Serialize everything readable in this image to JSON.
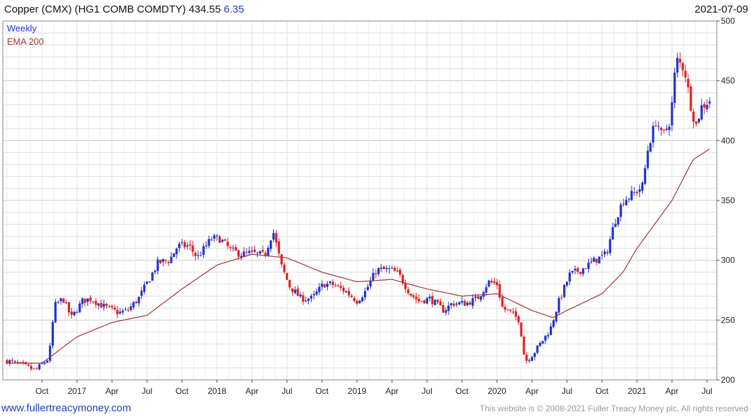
{
  "header": {
    "title": "Copper (CMX) (HG1 COMB COMDTY) 434.55",
    "change": "6.35",
    "date": "2021-07-09"
  },
  "footer": {
    "left": "www.fullertreacymoney.com",
    "right": "This website is © 2008-2021 Fuller Treacy Money plc. All rights reserved"
  },
  "colors": {
    "up": "#2233cc",
    "down": "#e02020",
    "ema": "#a83232",
    "grid": "#dedede"
  },
  "chart_data": {
    "type": "candlestick",
    "legend": [
      "Weekly",
      "EMA 200"
    ],
    "legend_position": "top-left",
    "grid": true,
    "ylim": [
      200,
      500
    ],
    "y_ticks": [
      200,
      250,
      300,
      350,
      400,
      450,
      500
    ],
    "x_ticks": [
      {
        "label": "Oct",
        "t": 2016.75
      },
      {
        "label": "2017",
        "t": 2017.0
      },
      {
        "label": "Apr",
        "t": 2017.25
      },
      {
        "label": "Jul",
        "t": 2017.5
      },
      {
        "label": "Oct",
        "t": 2017.75
      },
      {
        "label": "2018",
        "t": 2018.0
      },
      {
        "label": "Apr",
        "t": 2018.25
      },
      {
        "label": "Jul",
        "t": 2018.5
      },
      {
        "label": "Oct",
        "t": 2018.75
      },
      {
        "label": "2019",
        "t": 2019.0
      },
      {
        "label": "Apr",
        "t": 2019.25
      },
      {
        "label": "Jul",
        "t": 2019.5
      },
      {
        "label": "Oct",
        "t": 2019.75
      },
      {
        "label": "2020",
        "t": 2020.0
      },
      {
        "label": "Apr",
        "t": 2020.25
      },
      {
        "label": "Jul",
        "t": 2020.5
      },
      {
        "label": "Oct",
        "t": 2020.75
      },
      {
        "label": "2021",
        "t": 2021.0
      },
      {
        "label": "Apr",
        "t": 2021.25
      },
      {
        "label": "Jul",
        "t": 2021.5
      }
    ],
    "x_range": [
      2016.5,
      2021.52
    ],
    "price_path": [
      [
        2016.5,
        216
      ],
      [
        2016.62,
        212
      ],
      [
        2016.7,
        208
      ],
      [
        2016.8,
        218
      ],
      [
        2016.84,
        262
      ],
      [
        2016.9,
        268
      ],
      [
        2016.96,
        252
      ],
      [
        2017.04,
        266
      ],
      [
        2017.1,
        268
      ],
      [
        2017.18,
        262
      ],
      [
        2017.3,
        256
      ],
      [
        2017.36,
        258
      ],
      [
        2017.44,
        268
      ],
      [
        2017.52,
        285
      ],
      [
        2017.58,
        298
      ],
      [
        2017.66,
        300
      ],
      [
        2017.72,
        312
      ],
      [
        2017.8,
        312
      ],
      [
        2017.86,
        302
      ],
      [
        2017.96,
        318
      ],
      [
        2018.02,
        318
      ],
      [
        2018.1,
        308
      ],
      [
        2018.18,
        305
      ],
      [
        2018.24,
        306
      ],
      [
        2018.34,
        304
      ],
      [
        2018.4,
        325
      ],
      [
        2018.46,
        295
      ],
      [
        2018.52,
        278
      ],
      [
        2018.6,
        268
      ],
      [
        2018.68,
        268
      ],
      [
        2018.76,
        280
      ],
      [
        2018.82,
        280
      ],
      [
        2018.92,
        274
      ],
      [
        2019.0,
        266
      ],
      [
        2019.06,
        274
      ],
      [
        2019.14,
        292
      ],
      [
        2019.24,
        292
      ],
      [
        2019.3,
        288
      ],
      [
        2019.38,
        272
      ],
      [
        2019.44,
        266
      ],
      [
        2019.52,
        268
      ],
      [
        2019.62,
        258
      ],
      [
        2019.68,
        264
      ],
      [
        2019.78,
        264
      ],
      [
        2019.86,
        268
      ],
      [
        2019.94,
        282
      ],
      [
        2020.0,
        280
      ],
      [
        2020.04,
        260
      ],
      [
        2020.1,
        256
      ],
      [
        2020.16,
        250
      ],
      [
        2020.2,
        215
      ],
      [
        2020.26,
        222
      ],
      [
        2020.32,
        232
      ],
      [
        2020.38,
        242
      ],
      [
        2020.44,
        265
      ],
      [
        2020.52,
        288
      ],
      [
        2020.6,
        292
      ],
      [
        2020.7,
        300
      ],
      [
        2020.78,
        305
      ],
      [
        2020.84,
        332
      ],
      [
        2020.9,
        350
      ],
      [
        2020.98,
        356
      ],
      [
        2021.04,
        362
      ],
      [
        2021.08,
        395
      ],
      [
        2021.14,
        418
      ],
      [
        2021.18,
        402
      ],
      [
        2021.24,
        418
      ],
      [
        2021.28,
        468
      ],
      [
        2021.34,
        460
      ],
      [
        2021.38,
        432
      ],
      [
        2021.42,
        412
      ],
      [
        2021.46,
        428
      ],
      [
        2021.52,
        434
      ]
    ],
    "ema_path": [
      [
        2016.5,
        214
      ],
      [
        2016.75,
        214
      ],
      [
        2017.0,
        236
      ],
      [
        2017.25,
        248
      ],
      [
        2017.5,
        254
      ],
      [
        2017.75,
        276
      ],
      [
        2018.0,
        296
      ],
      [
        2018.25,
        305
      ],
      [
        2018.5,
        302
      ],
      [
        2018.75,
        290
      ],
      [
        2019.0,
        282
      ],
      [
        2019.25,
        284
      ],
      [
        2019.5,
        276
      ],
      [
        2019.75,
        270
      ],
      [
        2020.0,
        272
      ],
      [
        2020.25,
        258
      ],
      [
        2020.4,
        252
      ],
      [
        2020.5,
        258
      ],
      [
        2020.75,
        272
      ],
      [
        2020.9,
        290
      ],
      [
        2021.0,
        310
      ],
      [
        2021.25,
        350
      ],
      [
        2021.4,
        384
      ],
      [
        2021.52,
        393
      ]
    ]
  }
}
